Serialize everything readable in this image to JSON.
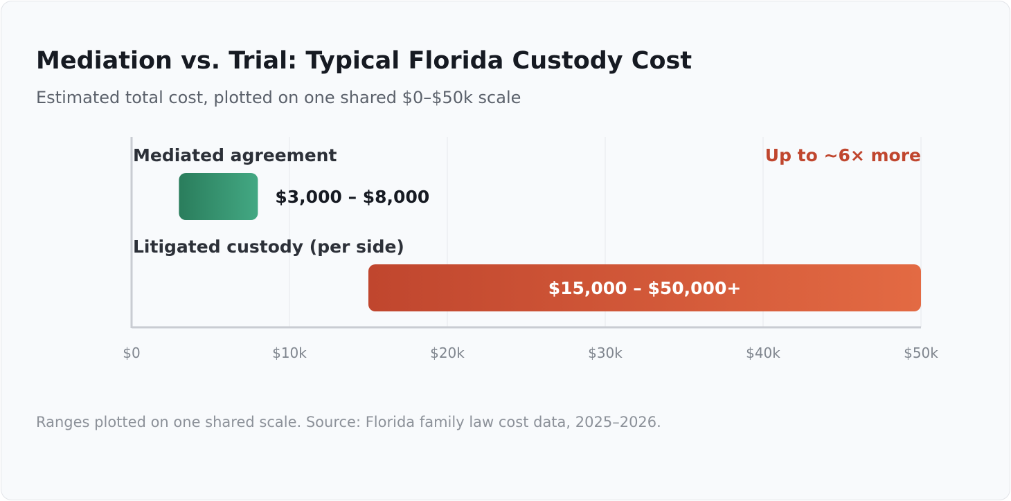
{
  "chart_data": {
    "type": "bar",
    "orientation": "horizontal-range",
    "title": "Mediation vs. Trial: Typical Florida Custody Cost",
    "subtitle": "Estimated total cost, plotted on one shared $0–$50k scale",
    "xlim": [
      0,
      50000
    ],
    "ticks": [
      {
        "value": 0,
        "label": "$0"
      },
      {
        "value": 10000,
        "label": "$10k"
      },
      {
        "value": 20000,
        "label": "$20k"
      },
      {
        "value": 30000,
        "label": "$30k"
      },
      {
        "value": 40000,
        "label": "$40k"
      },
      {
        "value": 50000,
        "label": "$50k"
      }
    ],
    "grid": true,
    "series": [
      {
        "category": "Mediated agreement",
        "low": 3000,
        "high": 8000,
        "value_label": "$3,000 – $8,000",
        "color_start": "#2a7d5c",
        "color_end": "#43a883"
      },
      {
        "category": "Litigated custody (per side)",
        "low": 15000,
        "high": 50000,
        "value_label": "$15,000 – $50,000+",
        "color_start": "#c0462e",
        "color_end": "#e36a43"
      }
    ],
    "annotation": "Up to ~6× more",
    "annotation_color": "#c0462e",
    "footnote": "Ranges plotted on one shared scale. Source: Florida family law cost data, 2025–2026."
  }
}
